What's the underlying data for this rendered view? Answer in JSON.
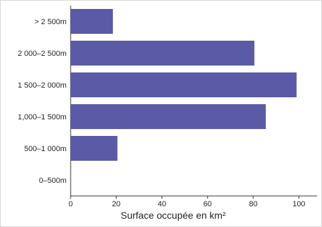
{
  "chart_data": {
    "type": "bar",
    "orientation": "horizontal",
    "categories": [
      "> 2 500m",
      "2 000–2 500m",
      "1 500–2 000m",
      "1,000–1 500m",
      "500–1 000m",
      "0–500m"
    ],
    "values": [
      18.5,
      80.5,
      99,
      85.5,
      20.5,
      0
    ],
    "xlabel": "Surface occupée en km²",
    "ylabel": "",
    "xlim": [
      0,
      108
    ],
    "xticks": [
      0,
      20,
      40,
      60,
      80,
      100
    ],
    "bar_color": "#5a5aa6",
    "grid": false
  }
}
